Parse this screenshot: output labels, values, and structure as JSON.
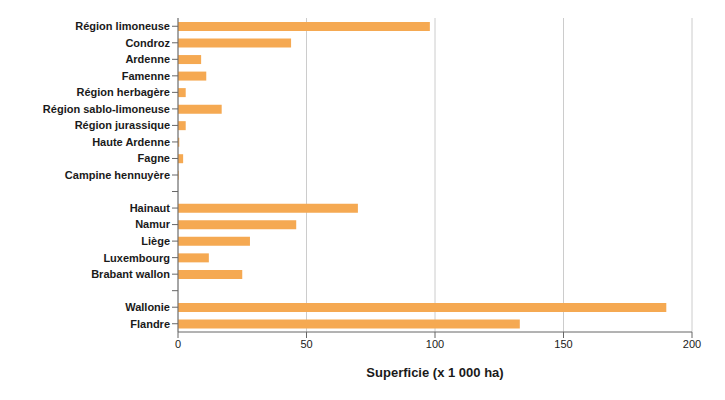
{
  "chart_data": {
    "type": "bar",
    "orientation": "horizontal",
    "categories": [
      "Région limoneuse",
      "Condroz",
      "Ardenne",
      "Famenne",
      "Région herbagère",
      "Région sablo-limoneuse",
      "Région jurassique",
      "Haute Ardenne",
      "Fagne",
      "Campine hennuyère",
      null,
      "Hainaut",
      "Namur",
      "Liège",
      "Luxembourg",
      "Brabant wallon",
      null,
      "Wallonie",
      "Flandre"
    ],
    "values": [
      98,
      44,
      9,
      11,
      3,
      17,
      3,
      0.5,
      2,
      0.3,
      0,
      70,
      46,
      28,
      12,
      25,
      0,
      190,
      133
    ],
    "color": "#F5A952",
    "xlabel": "Superficie (x 1 000 ha)",
    "xlim": [
      0,
      200
    ],
    "xticks": [
      0,
      50,
      100,
      150,
      200
    ],
    "grid": true
  }
}
